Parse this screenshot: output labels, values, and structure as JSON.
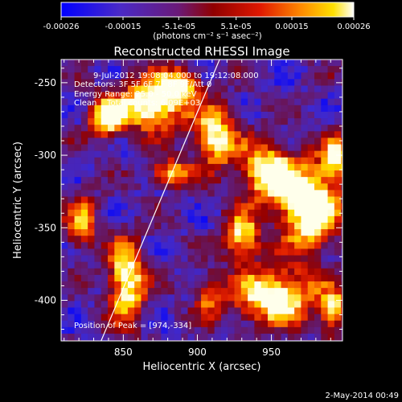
{
  "chart_data": {
    "type": "heatmap",
    "title": "Reconstructed RHESSI Image",
    "xlabel": "Heliocentric X (arcsec)",
    "ylabel": "Heliocentric Y (arcsec)",
    "xlim": [
      808,
      998
    ],
    "ylim": [
      -428,
      -234
    ],
    "x_ticks": [
      850,
      900,
      950
    ],
    "y_ticks": [
      -250,
      -300,
      -350,
      -400
    ],
    "colorbar": {
      "ticks": [
        "-0.00026",
        "-0.00015",
        "-5.1e-05",
        "5.1e-05",
        "0.00015",
        "0.00026"
      ],
      "tick_values": [
        -0.00026,
        -0.00015,
        -5.1e-05,
        5.1e-05,
        0.00015,
        0.00026
      ],
      "range": [
        -0.00026,
        0.00026
      ],
      "units": "(photons cm⁻² s⁻¹ asec⁻²)",
      "colors": [
        "#0000ff",
        "#5a2eb8",
        "#6a1a78",
        "#800000",
        "#c80000",
        "#ff4a00",
        "#ff9a00",
        "#ffe000",
        "#fffff0"
      ]
    },
    "info_lines": [
      "9-Jul-2012 19:08:04.000 to 19:12:08.000",
      "Detectors: 3F 5F 6F 7F 8F 9F/Att 0",
      "Energy Range: 25.0 - 50.0 keV",
      "Clean    Total counts: 6.09E+03"
    ],
    "peak_label": "Position of Peak = [974,-334]",
    "peak": [
      974,
      -334
    ],
    "limb_line": [
      [
        835,
        -428
      ],
      [
        915,
        -234
      ]
    ],
    "heatmap_blobs": [
      {
        "x": 868,
        "y": -262,
        "sx": 22,
        "sy": 18,
        "a": 0.95
      },
      {
        "x": 836,
        "y": -272,
        "sx": 12,
        "sy": 14,
        "a": 0.75
      },
      {
        "x": 910,
        "y": -285,
        "sx": 14,
        "sy": 20,
        "a": 0.8
      },
      {
        "x": 880,
        "y": -310,
        "sx": 14,
        "sy": 9,
        "a": 0.65
      },
      {
        "x": 974,
        "y": -334,
        "sx": 20,
        "sy": 28,
        "a": 1.0
      },
      {
        "x": 945,
        "y": -310,
        "sx": 18,
        "sy": 20,
        "a": 0.85
      },
      {
        "x": 992,
        "y": -300,
        "sx": 10,
        "sy": 14,
        "a": 0.7
      },
      {
        "x": 928,
        "y": -355,
        "sx": 12,
        "sy": 16,
        "a": 0.75
      },
      {
        "x": 950,
        "y": -395,
        "sx": 28,
        "sy": 18,
        "a": 0.9
      },
      {
        "x": 990,
        "y": -405,
        "sx": 9,
        "sy": 14,
        "a": 0.7
      },
      {
        "x": 850,
        "y": -385,
        "sx": 12,
        "sy": 28,
        "a": 0.85
      },
      {
        "x": 820,
        "y": -345,
        "sx": 10,
        "sy": 20,
        "a": 0.55
      },
      {
        "x": 905,
        "y": -395,
        "sx": 10,
        "sy": 14,
        "a": 0.45
      },
      {
        "x": 888,
        "y": -248,
        "sx": 12,
        "sy": 10,
        "a": 0.6
      }
    ]
  },
  "footer_date": "2-May-2014 00:49"
}
